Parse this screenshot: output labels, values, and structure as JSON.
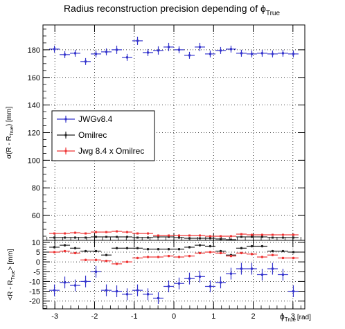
{
  "chart_data": {
    "type": "scatter",
    "title": "Radius reconstruction precision depending of ϕ",
    "title_sub": "True",
    "colors": {
      "JWGv8.4": "#3333cc",
      "Omilrec": "#222222",
      "Jwg 8.4 x Omilrec": "#ee3333"
    },
    "bin_width": 0.2618,
    "x": [
      -3.0107,
      -2.7489,
      -2.4871,
      -2.2253,
      -1.9635,
      -1.7017,
      -1.4399,
      -1.1781,
      -0.9163,
      -0.6545,
      -0.3927,
      -0.1309,
      0.1309,
      0.3927,
      0.6545,
      0.9163,
      1.1781,
      1.4399,
      1.7017,
      1.9635,
      2.2253,
      2.4871,
      2.7489,
      3.0107
    ],
    "xlim": [
      -3.3,
      3.3
    ],
    "xticks": [
      -3,
      -2,
      -1,
      0,
      1,
      2,
      3
    ],
    "xlabel": "ϕ",
    "xlabel_sub": "True",
    "xlabel_unit": "[rad]",
    "legend": {
      "placement": "middle-left",
      "entries": [
        "JWGv8.4",
        "Omilrec",
        "Jwg 8.4 x Omilrec"
      ]
    },
    "panels": [
      {
        "name": "top",
        "ylim": [
          42,
          198
        ],
        "yticks": [
          60,
          80,
          100,
          120,
          140,
          160,
          180
        ],
        "ylabel_main": "σ(R - R",
        "ylabel_sub": "True",
        "ylabel_tail": ") [mm]",
        "grid": true,
        "series": [
          {
            "name": "JWGv8.4",
            "values": [
              180.5,
              176.5,
              177.5,
              171.5,
              177.0,
              178.5,
              180.0,
              174.5,
              186.5,
              178.0,
              179.5,
              182.0,
              180.0,
              176.0,
              182.0,
              177.0,
              179.5,
              180.5,
              177.5,
              177.0,
              177.5,
              177.0,
              177.5,
              177.0
            ],
            "errors": [
              2.5,
              2.5,
              2.5,
              2.5,
              2.5,
              2.5,
              3.0,
              2.5,
              3.0,
              2.5,
              3.0,
              3.0,
              2.5,
              2.5,
              3.0,
              2.5,
              2.5,
              2.5,
              2.5,
              2.5,
              2.5,
              2.5,
              2.5,
              2.5
            ]
          },
          {
            "name": "Omilrec",
            "values": [
              44.0,
              44.0,
              44.0,
              44.0,
              44.5,
              44.5,
              44.5,
              44.5,
              44.0,
              44.0,
              44.5,
              44.5,
              44.0,
              43.5,
              43.5,
              43.5,
              43.0,
              42.5,
              44.5,
              44.5,
              44.5,
              44.0,
              44.0,
              44.0
            ],
            "errors": [
              0.6,
              0.6,
              0.6,
              0.6,
              0.6,
              0.6,
              0.6,
              0.6,
              0.6,
              0.6,
              0.6,
              0.6,
              0.6,
              0.6,
              0.6,
              0.6,
              0.6,
              0.6,
              0.6,
              0.6,
              0.6,
              0.6,
              0.6,
              0.6
            ]
          },
          {
            "name": "Jwg 8.4 x Omilrec",
            "values": [
              47.0,
              47.0,
              47.5,
              47.0,
              48.0,
              48.0,
              48.5,
              48.0,
              47.0,
              47.0,
              45.5,
              45.5,
              45.5,
              45.5,
              45.5,
              45.0,
              45.0,
              45.0,
              46.5,
              46.0,
              46.0,
              46.0,
              46.0,
              46.0
            ],
            "errors": [
              0.6,
              0.6,
              0.6,
              0.6,
              0.6,
              0.6,
              0.6,
              0.6,
              0.6,
              0.6,
              0.6,
              0.6,
              0.6,
              0.6,
              0.6,
              0.6,
              0.6,
              0.6,
              0.6,
              0.6,
              0.6,
              0.6,
              0.6,
              0.6
            ]
          }
        ]
      },
      {
        "name": "bottom",
        "ylim": [
          -24,
          11
        ],
        "yticks": [
          -20,
          -15,
          -10,
          -5,
          0,
          5,
          10
        ],
        "ylabel_main": "<R - R",
        "ylabel_sub": "True",
        "ylabel_tail": "> [mm]",
        "grid": true,
        "series": [
          {
            "name": "JWGv8.4",
            "values": [
              -14.5,
              -10.5,
              -12.0,
              -10.0,
              -5.0,
              -14.5,
              -15.0,
              -16.5,
              -14.5,
              -16.5,
              -18.5,
              -12.5,
              -11.0,
              -8.5,
              -7.5,
              -12.5,
              -10.5,
              -6.0,
              -3.5,
              -3.5,
              -6.5,
              -3.5,
              -6.5,
              -15.0
            ],
            "errors": [
              3.0,
              3.0,
              3.0,
              3.0,
              3.0,
              3.0,
              3.0,
              3.0,
              3.0,
              3.0,
              3.0,
              3.0,
              3.0,
              3.0,
              3.0,
              3.0,
              3.0,
              3.0,
              3.0,
              3.0,
              3.0,
              3.0,
              3.0,
              3.0
            ]
          },
          {
            "name": "Omilrec",
            "values": [
              7.5,
              8.5,
              7.0,
              5.5,
              5.5,
              3.5,
              7.0,
              7.0,
              7.0,
              6.5,
              6.5,
              6.5,
              6.5,
              7.5,
              8.5,
              8.0,
              5.5,
              3.5,
              7.0,
              8.0,
              8.0,
              5.5,
              5.5,
              5.0
            ],
            "errors": [
              0.6,
              0.6,
              0.6,
              0.6,
              0.6,
              0.6,
              0.6,
              0.6,
              0.6,
              0.6,
              0.6,
              0.6,
              0.6,
              0.6,
              0.6,
              0.6,
              0.6,
              0.6,
              0.6,
              0.6,
              0.6,
              0.6,
              0.6,
              0.6
            ]
          },
          {
            "name": "Jwg 8.4 x Omilrec",
            "values": [
              5.0,
              5.5,
              4.5,
              1.0,
              1.0,
              0.5,
              -1.0,
              0.0,
              2.0,
              2.5,
              2.5,
              3.0,
              2.5,
              3.0,
              4.5,
              5.0,
              4.5,
              3.0,
              4.5,
              4.0,
              2.5,
              3.5,
              2.0,
              2.0
            ],
            "errors": [
              0.6,
              0.6,
              0.6,
              0.6,
              0.6,
              0.6,
              0.6,
              0.6,
              0.6,
              0.6,
              0.6,
              0.6,
              0.6,
              0.6,
              0.6,
              0.6,
              0.6,
              0.6,
              0.6,
              0.6,
              0.6,
              0.6,
              0.6,
              0.6
            ]
          }
        ]
      }
    ]
  }
}
